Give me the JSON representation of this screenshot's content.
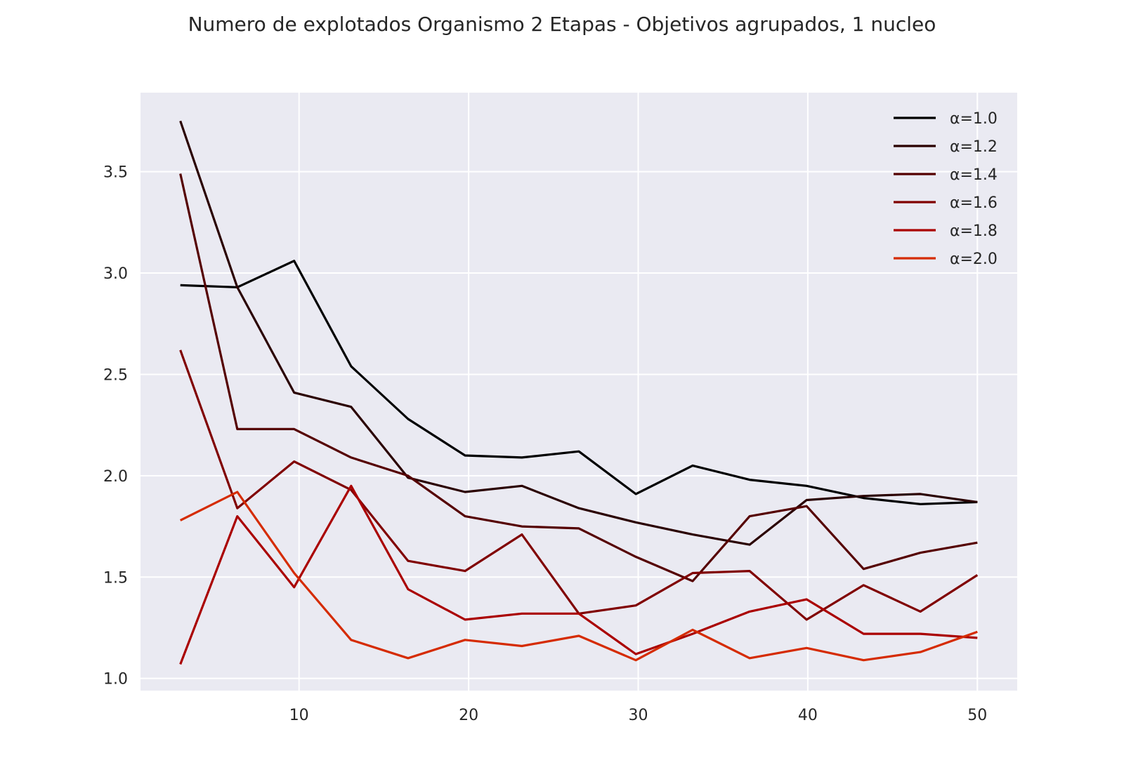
{
  "chart_data": {
    "type": "line",
    "title": "Numero de explotados Organismo 2 Etapas - Objetivos agrupados, 1 nucleo",
    "xlabel": "",
    "ylabel": "",
    "x": [
      3,
      6.36,
      9.71,
      13.07,
      16.43,
      19.79,
      23.14,
      26.5,
      29.86,
      33.21,
      36.57,
      39.93,
      43.29,
      46.64,
      50
    ],
    "xlim": [
      0.65,
      52.35
    ],
    "ylim": [
      0.94,
      3.89
    ],
    "xticks": [
      10,
      20,
      30,
      40,
      50
    ],
    "yticks": [
      1.0,
      1.5,
      2.0,
      2.5,
      3.0,
      3.5
    ],
    "xtick_labels": [
      "10",
      "20",
      "30",
      "40",
      "50"
    ],
    "ytick_labels": [
      "1.0",
      "1.5",
      "2.0",
      "2.5",
      "3.0",
      "3.5"
    ],
    "grid": true,
    "legend_position": "top-right",
    "background": "#eaeaf2",
    "series": [
      {
        "name": "α=1.0",
        "color": "#000000",
        "values": [
          2.94,
          2.93,
          3.06,
          2.54,
          2.28,
          2.1,
          2.09,
          2.12,
          1.91,
          2.05,
          1.98,
          1.95,
          1.89,
          1.86,
          1.87
        ]
      },
      {
        "name": "α=1.2",
        "color": "#2a0000",
        "values": [
          3.75,
          2.93,
          2.41,
          2.34,
          1.99,
          1.92,
          1.95,
          1.84,
          1.77,
          1.71,
          1.66,
          1.88,
          1.9,
          1.91,
          1.87
        ]
      },
      {
        "name": "α=1.4",
        "color": "#550000",
        "values": [
          3.49,
          2.23,
          2.23,
          2.09,
          2.0,
          1.8,
          1.75,
          1.74,
          1.6,
          1.48,
          1.8,
          1.85,
          1.54,
          1.62,
          1.67
        ]
      },
      {
        "name": "α=1.6",
        "color": "#800000",
        "values": [
          2.62,
          1.84,
          2.07,
          1.93,
          1.58,
          1.53,
          1.71,
          1.32,
          1.36,
          1.52,
          1.53,
          1.29,
          1.46,
          1.33,
          1.51
        ]
      },
      {
        "name": "α=1.8",
        "color": "#aa0000",
        "values": [
          1.07,
          1.8,
          1.45,
          1.95,
          1.44,
          1.29,
          1.32,
          1.32,
          1.12,
          1.22,
          1.33,
          1.39,
          1.22,
          1.22,
          1.2
        ]
      },
      {
        "name": "α=2.0",
        "color": "#d52b00",
        "values": [
          1.78,
          1.92,
          1.52,
          1.19,
          1.1,
          1.19,
          1.16,
          1.21,
          1.09,
          1.24,
          1.1,
          1.15,
          1.09,
          1.13,
          1.23
        ]
      }
    ]
  }
}
